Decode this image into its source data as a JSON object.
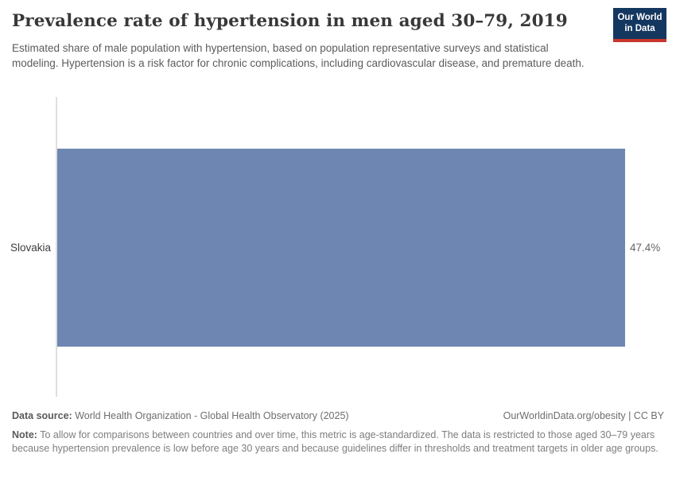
{
  "header": {
    "title": "Prevalence rate of hypertension in men aged 30–79, 2019",
    "subtitle": "Estimated share of male population with hypertension, based on population representative surveys and statistical modeling. Hypertension is a risk factor for chronic complications, including cardiovascular disease, and premature death."
  },
  "logo": {
    "line1": "Our World",
    "line2": "in Data",
    "bg_color": "#14375f",
    "accent_color": "#c8372d"
  },
  "chart_data": {
    "type": "bar",
    "orientation": "horizontal",
    "title": "Prevalence rate of hypertension in men aged 30–79, 2019",
    "categories": [
      "Slovakia"
    ],
    "values": [
      47.4
    ],
    "value_labels": [
      "47.4%"
    ],
    "xlabel": "",
    "ylabel": "",
    "xlim": [
      0,
      47.4
    ],
    "grid": false,
    "legend": false,
    "bar_color": "#6e87b2",
    "axis_color": "#dedede"
  },
  "footer": {
    "source_label": "Data source:",
    "source_text": " World Health Organization - Global Health Observatory (2025)",
    "attribution": "OurWorldinData.org/obesity | CC BY",
    "note_label": "Note:",
    "note_text": " To allow for comparisons between countries and over time, this metric is age-standardized. The data is restricted to those aged 30–79 years because hypertension prevalence is low before age 30 years and because guidelines differ in thresholds and treatment targets in older age groups."
  }
}
